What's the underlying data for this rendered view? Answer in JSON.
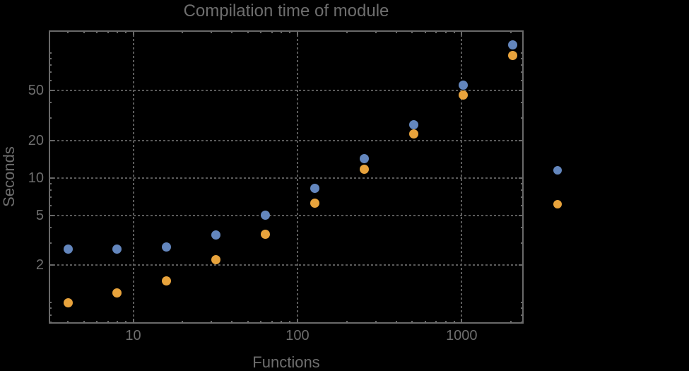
{
  "title": "Compilation time of module",
  "x_axis": {
    "label": "Functions",
    "major_ticks": [
      {
        "v": 10,
        "label": "10"
      },
      {
        "v": 100,
        "label": "100"
      },
      {
        "v": 1000,
        "label": "1000"
      }
    ],
    "minor_ticks": [
      4,
      5,
      6,
      7,
      8,
      9,
      20,
      30,
      40,
      50,
      60,
      70,
      80,
      90,
      200,
      300,
      400,
      500,
      600,
      700,
      800,
      900,
      2000
    ]
  },
  "y_axis": {
    "label": "Seconds",
    "major_ticks": [
      {
        "v": 2,
        "label": "2"
      },
      {
        "v": 5,
        "label": "5"
      },
      {
        "v": 10,
        "label": "10"
      },
      {
        "v": 20,
        "label": "20"
      },
      {
        "v": 50,
        "label": "50"
      }
    ],
    "minor_ticks": [
      0.7,
      0.8,
      0.9,
      1,
      3,
      4,
      6,
      7,
      8,
      9,
      30,
      40,
      60,
      70,
      80,
      90,
      100
    ]
  },
  "legend": {
    "markers": [
      {
        "name": "series-1",
        "color": "#6386BD"
      },
      {
        "name": "series-2",
        "color": "#E8A33C"
      }
    ]
  },
  "colors": {
    "background": "#000000",
    "text": "#6E6E6E",
    "frame": "#696969",
    "grid": "#5A5A5A",
    "series1": "#6386BD",
    "series2": "#E8A33C"
  },
  "chart_data": {
    "type": "scatter",
    "scale": "log-log",
    "title": "Compilation time of module",
    "xlabel": "Functions",
    "ylabel": "Seconds",
    "xlim": [
      3.06,
      2384
    ],
    "ylim": [
      0.68,
      152
    ],
    "grid": "dotted gridlines at x = 10, 100, 1000 and y = 2, 5, 10, 20, 50",
    "legend_position": "right, markers only (no visible labels)",
    "x": [
      4,
      8,
      16,
      32,
      64,
      128,
      256,
      512,
      1024,
      2048
    ],
    "series": [
      {
        "name": "series-1 (blue)",
        "color": "#6386BD",
        "values": [
          2.7,
          2.7,
          2.8,
          3.5,
          5.0,
          8.2,
          14.3,
          26.6,
          55,
          117
        ]
      },
      {
        "name": "series-2 (orange)",
        "color": "#E8A33C",
        "values": [
          1.0,
          1.2,
          1.5,
          2.2,
          3.55,
          6.3,
          11.8,
          22.6,
          46,
          96
        ]
      }
    ]
  }
}
